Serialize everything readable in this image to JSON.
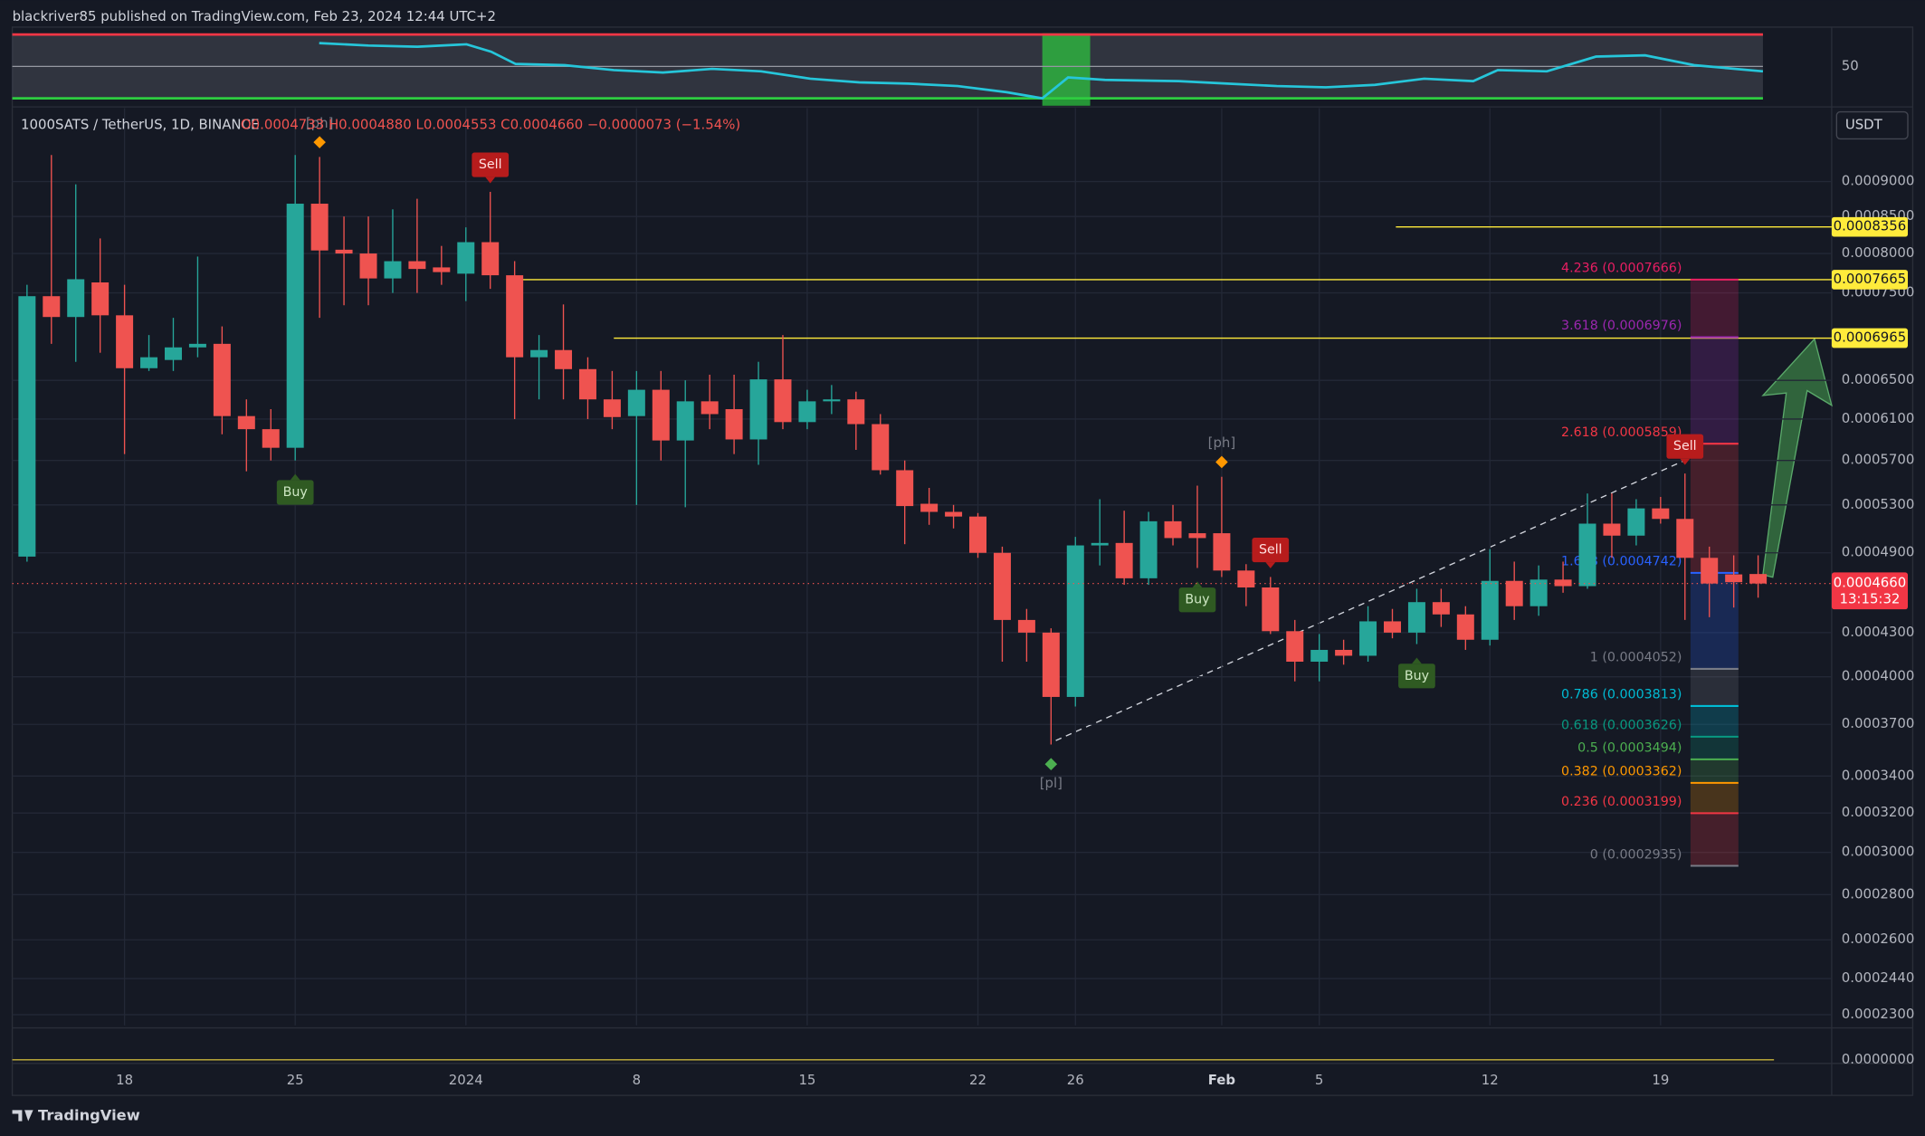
{
  "header": {
    "published": "blackriver85 published on TradingView.com, Feb 23, 2024 12:44 UTC+2",
    "brand": "TradingView"
  },
  "chart_data": {
    "type": "candlestick",
    "symbol": "1000SATS / TetherUS, 1D, BINANCE",
    "ohlc_text": "O0.0004733 H0.0004880 L0.0004553 C0.0004660 −0.0000073 (−1.54%)",
    "currency": "USDT",
    "up_color": "#26a69a",
    "down_color": "#ef5350",
    "log": true,
    "grid": true,
    "ylim": [
      0.000226,
      0.001015
    ],
    "yticks": [
      {
        "value": 0.0009,
        "label": "0.0009000"
      },
      {
        "value": 0.00085,
        "label": "0.0008500"
      },
      {
        "value": 0.0008,
        "label": "0.0008000"
      },
      {
        "value": 0.00075,
        "label": "0.0007500"
      },
      {
        "value": 0.00065,
        "label": "0.0006500"
      },
      {
        "value": 0.00061,
        "label": "0.0006100"
      },
      {
        "value": 0.00057,
        "label": "0.0005700"
      },
      {
        "value": 0.00053,
        "label": "0.0005300"
      },
      {
        "value": 0.00049,
        "label": "0.0004900"
      },
      {
        "value": 0.00043,
        "label": "0.0004300"
      },
      {
        "value": 0.0004,
        "label": "0.0004000"
      },
      {
        "value": 0.00037,
        "label": "0.0003700"
      },
      {
        "value": 0.00034,
        "label": "0.0003400"
      },
      {
        "value": 0.00032,
        "label": "0.0003200"
      },
      {
        "value": 0.0003,
        "label": "0.0003000"
      },
      {
        "value": 0.00028,
        "label": "0.0002800"
      },
      {
        "value": 0.00026,
        "label": "0.0002600"
      },
      {
        "value": 0.000244,
        "label": "0.0002440"
      },
      {
        "value": 0.00023,
        "label": "0.0002300"
      }
    ],
    "volume_axis_label": "0.0000000",
    "rsi_level_label": "50",
    "x": [
      null,
      null,
      null,
      null,
      "18",
      null,
      null,
      null,
      null,
      null,
      null,
      "25",
      null,
      null,
      null,
      null,
      null,
      null,
      "2024",
      null,
      null,
      null,
      null,
      null,
      null,
      "8",
      null,
      null,
      null,
      null,
      null,
      null,
      "15",
      null,
      null,
      null,
      null,
      null,
      null,
      "22",
      null,
      null,
      null,
      "26",
      null,
      null,
      null,
      null,
      null,
      "Feb",
      null,
      null,
      null,
      "5",
      null,
      null,
      null,
      null,
      null,
      null,
      "12",
      null,
      null,
      null,
      null,
      null,
      null,
      "19",
      null,
      null,
      null,
      null
    ],
    "open": [
      0.000487,
      0.000746,
      0.000721,
      0.000763,
      0.000723,
      0.000663,
      0.000672,
      0.000686,
      0.00069,
      0.000613,
      0.0006,
      0.000582,
      0.000868,
      0.000805,
      0.0008,
      0.000768,
      0.00079,
      0.000782,
      0.000774,
      0.000815,
      0.000772,
      0.000675,
      0.000683,
      0.000662,
      0.00063,
      0.000613,
      0.00064,
      0.000589,
      0.000628,
      0.00062,
      0.00059,
      0.000651,
      0.000607,
      0.000628,
      0.00063,
      0.000605,
      0.000561,
      0.000531,
      0.000524,
      0.00052,
      0.00049,
      0.000439,
      0.00043,
      0.000387,
      0.000496,
      0.000498,
      0.00047,
      0.000516,
      0.000506,
      0.000506,
      0.000476,
      0.000463,
      0.000431,
      0.00041,
      0.000418,
      0.000414,
      0.000438,
      0.00043,
      0.000452,
      0.000443,
      0.000425,
      0.000468,
      0.000449,
      0.000469,
      0.000464,
      0.000514,
      0.000504,
      0.000527,
      0.000518,
      0.000486,
      0.000473,
      0.0004733
    ],
    "high": [
      0.00076,
      0.00094,
      0.000896,
      0.00082,
      0.00076,
      0.0007,
      0.00072,
      0.000796,
      0.00071,
      0.00063,
      0.00062,
      0.00094,
      0.000937,
      0.00085,
      0.00085,
      0.00086,
      0.000875,
      0.00081,
      0.000835,
      0.000885,
      0.00079,
      0.0007,
      0.000736,
      0.000675,
      0.00066,
      0.00066,
      0.00066,
      0.00065,
      0.000656,
      0.000656,
      0.00067,
      0.0007,
      0.00064,
      0.000645,
      0.000638,
      0.000615,
      0.00057,
      0.000545,
      0.00053,
      0.000523,
      0.000495,
      0.000447,
      0.000433,
      0.000503,
      0.000535,
      0.000525,
      0.000524,
      0.00053,
      0.000547,
      0.000555,
      0.000481,
      0.000471,
      0.000439,
      0.000429,
      0.000425,
      0.000449,
      0.000447,
      0.000462,
      0.000462,
      0.000449,
      0.000493,
      0.000483,
      0.00048,
      0.000483,
      0.00054,
      0.00054,
      0.000535,
      0.000537,
      0.000558,
      0.000495,
      0.000488,
      0.000488
    ],
    "low": [
      0.000483,
      0.00069,
      0.00067,
      0.00068,
      0.000576,
      0.00066,
      0.00066,
      0.000675,
      0.000595,
      0.00056,
      0.00057,
      0.00057,
      0.00072,
      0.000735,
      0.000735,
      0.00075,
      0.00075,
      0.00076,
      0.00074,
      0.000755,
      0.00061,
      0.00063,
      0.00063,
      0.00061,
      0.0006,
      0.00053,
      0.00057,
      0.000528,
      0.0006,
      0.000576,
      0.000566,
      0.0006,
      0.0006,
      0.000615,
      0.00058,
      0.000557,
      0.000497,
      0.000513,
      0.00051,
      0.000486,
      0.00041,
      0.00041,
      0.000358,
      0.000381,
      0.00048,
      0.000465,
      0.000465,
      0.000496,
      0.000478,
      0.000471,
      0.000449,
      0.000429,
      0.000397,
      0.000397,
      0.000408,
      0.00041,
      0.000426,
      0.000422,
      0.000434,
      0.000418,
      0.000421,
      0.000439,
      0.000442,
      0.000459,
      0.000462,
      0.000486,
      0.000496,
      0.000514,
      0.000439,
      0.000441,
      0.000448,
      0.0004553
    ],
    "close": [
      0.000746,
      0.000721,
      0.000767,
      0.000723,
      0.000663,
      0.000675,
      0.000686,
      0.00069,
      0.000613,
      0.0006,
      0.000582,
      0.000868,
      0.000804,
      0.0008,
      0.000768,
      0.00079,
      0.00078,
      0.000776,
      0.000815,
      0.000772,
      0.000675,
      0.000683,
      0.000662,
      0.00063,
      0.000612,
      0.00064,
      0.000589,
      0.000628,
      0.000615,
      0.00059,
      0.000651,
      0.000607,
      0.000628,
      0.00063,
      0.000605,
      0.000561,
      0.000529,
      0.000524,
      0.00052,
      0.00049,
      0.000439,
      0.00043,
      0.000387,
      0.000496,
      0.000498,
      0.00047,
      0.000516,
      0.000502,
      0.000502,
      0.000476,
      0.000463,
      0.000431,
      0.00041,
      0.000418,
      0.000414,
      0.000438,
      0.00043,
      0.000452,
      0.000443,
      0.000425,
      0.000468,
      0.000449,
      0.000469,
      0.000464,
      0.000514,
      0.000504,
      0.000527,
      0.000518,
      0.000486,
      0.000466,
      0.000467,
      0.000466
    ],
    "signals": [
      null,
      null,
      null,
      null,
      null,
      null,
      null,
      null,
      null,
      null,
      null,
      "Buy",
      null,
      null,
      null,
      null,
      null,
      null,
      null,
      "Sell",
      null,
      null,
      null,
      null,
      null,
      null,
      null,
      null,
      null,
      null,
      null,
      null,
      null,
      null,
      null,
      null,
      null,
      null,
      null,
      null,
      null,
      null,
      null,
      null,
      null,
      null,
      null,
      null,
      "Buy",
      null,
      null,
      "Sell",
      null,
      null,
      null,
      null,
      null,
      "Buy",
      null,
      null,
      null,
      null,
      null,
      null,
      null,
      null,
      null,
      null,
      "Sell",
      null,
      null,
      null
    ],
    "pivots": [
      null,
      null,
      null,
      null,
      null,
      null,
      null,
      null,
      null,
      null,
      null,
      null,
      "[ph]",
      null,
      null,
      null,
      null,
      null,
      null,
      null,
      null,
      null,
      null,
      null,
      null,
      null,
      null,
      null,
      null,
      null,
      null,
      null,
      null,
      null,
      null,
      null,
      null,
      null,
      null,
      null,
      null,
      null,
      "[pl]",
      null,
      null,
      null,
      null,
      null,
      null,
      "[ph]",
      null,
      null,
      null,
      null,
      null,
      null,
      null,
      null,
      null,
      null,
      null,
      null,
      null,
      null,
      null,
      null,
      null,
      null,
      null,
      null,
      null,
      null
    ],
    "levels": [
      {
        "value": 0.0008356,
        "label": "0.0008356"
      },
      {
        "value": 0.0007665,
        "label": "0.0007665"
      },
      {
        "value": 0.0006965,
        "label": "0.0006965"
      }
    ],
    "level_color": "#ffeb3b",
    "fib": [
      {
        "label": "4.236 (0.0007666)",
        "value": 0.0007666,
        "color": "#e91e63"
      },
      {
        "label": "3.618 (0.0006976)",
        "value": 0.0006976,
        "color": "#9c27b0"
      },
      {
        "label": "2.618 (0.0005859)",
        "value": 0.0005859,
        "color": "#f23645"
      },
      {
        "label": "1.618 (0.0004742)",
        "value": 0.0004742,
        "color": "#2962ff"
      },
      {
        "label": "1 (0.0004052)",
        "value": 0.0004052,
        "color": "#787b86"
      },
      {
        "label": "0.786 (0.0003813)",
        "value": 0.0003813,
        "color": "#00bcd4"
      },
      {
        "label": "0.618 (0.0003626)",
        "value": 0.0003626,
        "color": "#089981"
      },
      {
        "label": "0.5 (0.0003494)",
        "value": 0.0003494,
        "color": "#4caf50"
      },
      {
        "label": "0.382 (0.0003362)",
        "value": 0.0003362,
        "color": "#ff9800"
      },
      {
        "label": "0.236 (0.0003199)",
        "value": 0.0003199,
        "color": "#f23645"
      },
      {
        "label": "0 (0.0002935)",
        "value": 0.0002935,
        "color": "#787b86"
      }
    ],
    "last_price_label": "0.0004660",
    "countdown": "13:15:32"
  }
}
